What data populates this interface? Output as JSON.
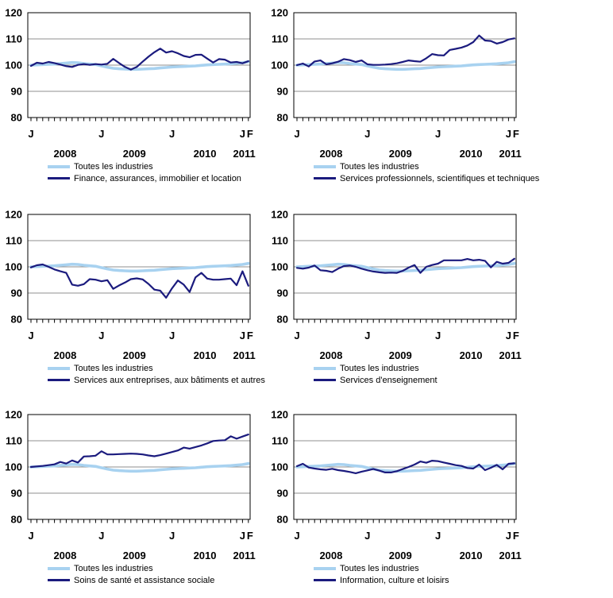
{
  "page": {
    "background": "#ffffff"
  },
  "colors": {
    "all_industries_line": "#A8D2F0",
    "industry_line": "#1B1B7E",
    "gridline": "#8F8F8F",
    "frame": "#000000",
    "tick": "#000000",
    "text": "#000000"
  },
  "axis": {
    "y_ticks": [
      120,
      110,
      100,
      90,
      80
    ],
    "ylim": [
      80,
      120
    ],
    "months_total": 38,
    "month_labels": [
      {
        "label": "J",
        "month": 0
      },
      {
        "label": "J",
        "month": 12
      },
      {
        "label": "J",
        "month": 24
      },
      {
        "label": "J",
        "month": 36
      },
      {
        "label": "F",
        "month": 37
      }
    ],
    "year_labels": [
      {
        "label": "2008",
        "month": 5.8
      },
      {
        "label": "2009",
        "month": 17.6
      },
      {
        "label": "2010",
        "month": 29.6
      },
      {
        "label": "2011",
        "month": 36.3
      }
    ]
  },
  "chart_data": [
    {
      "type": "line",
      "position": "top-left",
      "x_range": "Jan 2008 - Feb 2011 (monthly)",
      "ylim": [
        80,
        120
      ],
      "grid": true,
      "legend_position": "below-left",
      "series": [
        {
          "name": "Toutes les industries",
          "color": "#A8D2F0",
          "values": [
            100.0,
            100.1,
            100.2,
            100.3,
            100.4,
            100.6,
            100.8,
            101.0,
            100.9,
            100.6,
            100.4,
            100.2,
            99.7,
            99.2,
            98.8,
            98.6,
            98.5,
            98.4,
            98.4,
            98.5,
            98.6,
            98.7,
            98.9,
            99.1,
            99.3,
            99.4,
            99.5,
            99.6,
            99.7,
            99.9,
            100.1,
            100.2,
            100.3,
            100.4,
            100.5,
            100.7,
            100.9,
            101.3
          ]
        },
        {
          "name": "Finance, assurances, immobilier et location",
          "color": "#1B1B7E",
          "values": [
            99.7,
            100.9,
            100.6,
            101.2,
            100.8,
            100.2,
            99.6,
            99.3,
            100.1,
            100.4,
            100.1,
            100.4,
            100.2,
            100.5,
            102.4,
            100.8,
            99.3,
            98.3,
            99.3,
            101.3,
            103.2,
            104.9,
            106.3,
            104.8,
            105.3,
            104.5,
            103.5,
            103.0,
            103.9,
            104.0,
            102.5,
            101.0,
            102.3,
            102.1,
            101.0,
            101.2,
            100.7,
            101.5
          ]
        }
      ]
    },
    {
      "type": "line",
      "position": "top-right",
      "x_range": "Jan 2008 - Feb 2011 (monthly)",
      "ylim": [
        80,
        120
      ],
      "grid": true,
      "legend_position": "below-left",
      "series": [
        {
          "name": "Toutes les industries",
          "color": "#A8D2F0",
          "values": [
            100.0,
            100.1,
            100.2,
            100.3,
            100.4,
            100.6,
            100.8,
            101.0,
            100.9,
            100.6,
            100.4,
            100.2,
            99.7,
            99.2,
            98.8,
            98.6,
            98.5,
            98.4,
            98.4,
            98.5,
            98.6,
            98.7,
            98.9,
            99.1,
            99.3,
            99.4,
            99.5,
            99.6,
            99.7,
            99.9,
            100.1,
            100.2,
            100.3,
            100.4,
            100.5,
            100.7,
            100.9,
            101.3
          ]
        },
        {
          "name": "Services professionnels, scientifiques et techniques",
          "color": "#1B1B7E",
          "values": [
            100.0,
            100.6,
            99.5,
            101.4,
            101.8,
            100.3,
            100.7,
            101.3,
            102.3,
            101.9,
            101.2,
            101.8,
            100.3,
            100.1,
            100.1,
            100.2,
            100.4,
            100.7,
            101.2,
            101.8,
            101.5,
            101.3,
            102.6,
            104.2,
            103.8,
            103.7,
            105.8,
            106.2,
            106.7,
            107.5,
            108.8,
            111.3,
            109.4,
            109.2,
            108.2,
            108.8,
            109.8,
            110.2
          ]
        }
      ]
    },
    {
      "type": "line",
      "position": "middle-left",
      "x_range": "Jan 2008 - Feb 2011 (monthly)",
      "ylim": [
        80,
        120
      ],
      "grid": true,
      "legend_position": "below-left",
      "series": [
        {
          "name": "Toutes les industries",
          "color": "#A8D2F0",
          "values": [
            100.0,
            100.1,
            100.2,
            100.3,
            100.4,
            100.6,
            100.8,
            101.0,
            100.9,
            100.6,
            100.4,
            100.2,
            99.7,
            99.2,
            98.8,
            98.6,
            98.5,
            98.4,
            98.4,
            98.5,
            98.6,
            98.7,
            98.9,
            99.1,
            99.3,
            99.4,
            99.5,
            99.6,
            99.7,
            99.9,
            100.1,
            100.2,
            100.3,
            100.4,
            100.5,
            100.7,
            100.9,
            101.3
          ]
        },
        {
          "name": "Services aux entreprises, aux bâtiments et autres",
          "color": "#1B1B7E",
          "values": [
            99.8,
            100.6,
            100.9,
            100.0,
            99.0,
            98.3,
            97.7,
            93.2,
            92.8,
            93.4,
            95.3,
            95.1,
            94.5,
            94.9,
            91.6,
            92.9,
            94.0,
            95.3,
            95.6,
            95.2,
            93.5,
            91.3,
            90.9,
            88.2,
            91.8,
            94.8,
            93.2,
            90.4,
            96.0,
            97.7,
            95.5,
            95.1,
            95.1,
            95.3,
            95.5,
            93.0,
            98.3,
            92.8
          ]
        }
      ]
    },
    {
      "type": "line",
      "position": "middle-right",
      "x_range": "Jan 2008 - Feb 2011 (monthly)",
      "ylim": [
        80,
        120
      ],
      "grid": true,
      "legend_position": "below-left",
      "series": [
        {
          "name": "Toutes les industries",
          "color": "#A8D2F0",
          "values": [
            100.0,
            100.1,
            100.2,
            100.3,
            100.4,
            100.6,
            100.8,
            101.0,
            100.9,
            100.6,
            100.4,
            100.2,
            99.7,
            99.2,
            98.8,
            98.6,
            98.5,
            98.4,
            98.4,
            98.5,
            98.6,
            98.7,
            98.9,
            99.1,
            99.3,
            99.4,
            99.5,
            99.6,
            99.7,
            99.9,
            100.1,
            100.2,
            100.3,
            100.4,
            100.5,
            100.7,
            100.9,
            101.3
          ]
        },
        {
          "name": "Services d'enseignement",
          "color": "#1B1B7E",
          "values": [
            99.6,
            99.3,
            99.7,
            100.5,
            98.7,
            98.5,
            98.0,
            99.3,
            100.3,
            100.5,
            100.0,
            99.3,
            98.7,
            98.2,
            97.9,
            97.7,
            97.8,
            97.7,
            98.5,
            99.7,
            100.7,
            97.7,
            100.0,
            100.7,
            101.2,
            102.5,
            102.5,
            102.5,
            102.5,
            103.0,
            102.5,
            102.7,
            102.3,
            99.8,
            101.9,
            101.2,
            101.5,
            103.1
          ]
        }
      ]
    },
    {
      "type": "line",
      "position": "bottom-left",
      "x_range": "Jan 2008 - Feb 2011 (monthly)",
      "ylim": [
        80,
        120
      ],
      "grid": true,
      "legend_position": "below-left",
      "series": [
        {
          "name": "Toutes les industries",
          "color": "#A8D2F0",
          "values": [
            100.0,
            100.1,
            100.2,
            100.3,
            100.4,
            100.6,
            100.8,
            101.0,
            100.9,
            100.6,
            100.4,
            100.2,
            99.7,
            99.2,
            98.8,
            98.6,
            98.5,
            98.4,
            98.4,
            98.5,
            98.6,
            98.7,
            98.9,
            99.1,
            99.3,
            99.4,
            99.5,
            99.6,
            99.7,
            99.9,
            100.1,
            100.2,
            100.3,
            100.4,
            100.5,
            100.7,
            100.9,
            101.3
          ]
        },
        {
          "name": "Soins de santé et assistance sociale",
          "color": "#1B1B7E",
          "values": [
            100.0,
            100.2,
            100.4,
            100.7,
            101.0,
            101.9,
            101.3,
            102.5,
            101.7,
            104.0,
            104.1,
            104.3,
            106.0,
            104.8,
            104.8,
            104.9,
            105.0,
            105.1,
            105.0,
            104.8,
            104.4,
            104.1,
            104.5,
            105.1,
            105.7,
            106.3,
            107.4,
            107.0,
            107.6,
            108.2,
            109.0,
            109.9,
            110.1,
            110.2,
            111.7,
            110.8,
            111.6,
            112.4
          ]
        }
      ]
    },
    {
      "type": "line",
      "position": "bottom-right",
      "x_range": "Jan 2008 - Feb 2011 (monthly)",
      "ylim": [
        80,
        120
      ],
      "grid": true,
      "legend_position": "below-left",
      "series": [
        {
          "name": "Toutes les industries",
          "color": "#A8D2F0",
          "values": [
            100.0,
            100.1,
            100.2,
            100.3,
            100.4,
            100.6,
            100.8,
            101.0,
            100.9,
            100.6,
            100.4,
            100.2,
            99.7,
            99.2,
            98.8,
            98.6,
            98.5,
            98.4,
            98.4,
            98.5,
            98.6,
            98.7,
            98.9,
            99.1,
            99.3,
            99.4,
            99.5,
            99.6,
            99.7,
            99.9,
            100.1,
            100.2,
            100.3,
            100.4,
            100.5,
            100.7,
            100.9,
            101.3
          ]
        },
        {
          "name": "Information, culture et loisirs",
          "color": "#1B1B7E",
          "values": [
            100.3,
            101.2,
            99.8,
            99.4,
            99.1,
            98.9,
            99.3,
            98.8,
            98.5,
            98.1,
            97.6,
            98.2,
            98.7,
            99.2,
            98.6,
            97.9,
            97.9,
            98.4,
            99.2,
            100.0,
            100.9,
            102.1,
            101.6,
            102.4,
            102.2,
            101.7,
            101.2,
            100.7,
            100.4,
            99.6,
            99.4,
            100.9,
            98.8,
            99.7,
            100.8,
            99.1,
            101.2,
            101.4
          ]
        }
      ]
    }
  ]
}
